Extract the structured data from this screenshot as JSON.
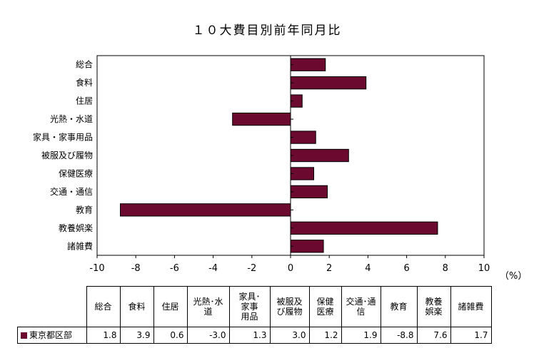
{
  "chart_data": {
    "type": "bar",
    "orientation": "horizontal",
    "title": "１０大費目別前年同月比",
    "unit": "（%）",
    "categories": [
      "総合",
      "食料",
      "住居",
      "光熱・水道",
      "家具・家事用品",
      "被服及び履物",
      "保健医療",
      "交通・通信",
      "教育",
      "教養娯楽",
      "諸雑費"
    ],
    "table_headers": [
      "総合",
      "食料",
      "住居",
      "光熱･水\n道",
      "家具･\n家事\n用品",
      "被服及\nび履物",
      "保健\n医療",
      "交通･通\n信",
      "教育",
      "教養\n娯楽",
      "諸雑費"
    ],
    "series": [
      {
        "name": "東京都区部",
        "values": [
          1.8,
          3.9,
          0.6,
          -3.0,
          1.3,
          3.0,
          1.2,
          1.9,
          -8.8,
          7.6,
          1.7
        ],
        "labels": [
          "1.8",
          "3.9",
          "0.6",
          "-3.0",
          "1.3",
          "3.0",
          "1.2",
          "1.9",
          "-8.8",
          "7.6",
          "1.7"
        ]
      }
    ],
    "xlim": [
      -10,
      10
    ],
    "xticks": [
      "-10",
      "-8",
      "-6",
      "-4",
      "-2",
      "0",
      "2",
      "4",
      "6",
      "8",
      "10"
    ],
    "grid": false,
    "bar_color": "#6B0A2E"
  }
}
